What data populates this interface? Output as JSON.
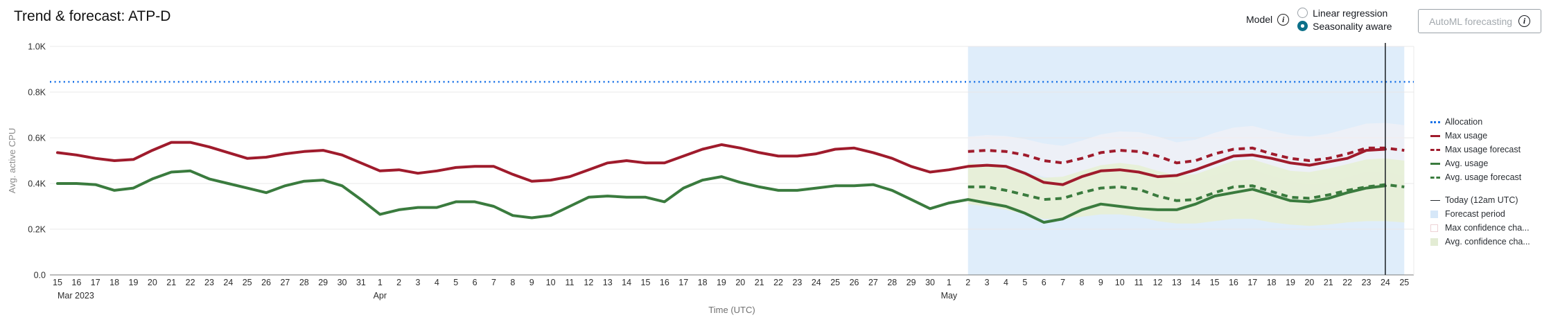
{
  "header": {
    "title": "Trend & forecast: ATP-D",
    "model_label": "Model",
    "model_info_icon": "i",
    "radios": [
      {
        "label": "Linear regression",
        "selected": false
      },
      {
        "label": "Seasonality aware",
        "selected": true
      }
    ],
    "automl_button_label": "AutoML forecasting",
    "automl_info_icon": "i"
  },
  "colors": {
    "accent_radio_selected": "#0c7089",
    "allocation_blue": "#1a73e8",
    "max_red": "#9f1b2c",
    "avg_green": "#3a7b3e",
    "today_line": "#24292e",
    "forecast_bg": "#dcebfa",
    "max_band": "rgba(255,243,243,0.45)",
    "avg_band": "rgba(231,239,215,0.95)",
    "grid": "#e8e8e8",
    "axis": "#7a7a7a"
  },
  "legend": {
    "items": [
      {
        "name": "legend-allocation",
        "label": "Allocation",
        "swatch": "dotted-line",
        "color": "#1a73e8",
        "group": 1
      },
      {
        "name": "legend-max-usage",
        "label": "Max usage",
        "swatch": "solid-line",
        "color": "#9f1b2c",
        "group": 1
      },
      {
        "name": "legend-max-usage-forecast",
        "label": "Max usage forecast",
        "swatch": "dashed-line",
        "color": "#9f1b2c",
        "group": 1
      },
      {
        "name": "legend-avg-usage",
        "label": "Avg. usage",
        "swatch": "solid-line",
        "color": "#3a7b3e",
        "group": 1
      },
      {
        "name": "legend-avg-usage-forecast",
        "label": "Avg. usage forecast",
        "swatch": "dashed-line",
        "color": "#3a7b3e",
        "group": 1
      },
      {
        "name": "legend-today",
        "label": "Today (12am UTC)",
        "swatch": "plain-line",
        "color": "#24292e",
        "group": 2
      },
      {
        "name": "legend-forecast-period",
        "label": "Forecast period",
        "swatch": "square",
        "color": "#d6e7f8",
        "group": 2
      },
      {
        "name": "legend-max-confidence",
        "label": "Max confidence cha...",
        "swatch": "square-outline",
        "color": "#eed3d6",
        "group": 2
      },
      {
        "name": "legend-avg-confidence",
        "label": "Avg. confidence cha...",
        "swatch": "square",
        "color": "#e3ecd4",
        "group": 2
      }
    ]
  },
  "chart_data": {
    "type": "line",
    "title": "Trend & forecast: ATP-D",
    "xlabel": "Time (UTC)",
    "ylabel": "Avg. active CPU",
    "ylim": [
      0,
      1000
    ],
    "y_ticks": [
      {
        "value": 0,
        "label": "0.0"
      },
      {
        "value": 200,
        "label": "0.2K"
      },
      {
        "value": 400,
        "label": "0.4K"
      },
      {
        "value": 600,
        "label": "0.6K"
      },
      {
        "value": 800,
        "label": "0.8K"
      },
      {
        "value": 1000,
        "label": "1.0K"
      }
    ],
    "x_axis": {
      "months": [
        {
          "label": "Mar 2023",
          "days": [
            15,
            16,
            17,
            18,
            19,
            20,
            21,
            22,
            23,
            24,
            25,
            26,
            27,
            28,
            29,
            30,
            31
          ]
        },
        {
          "label": "Apr",
          "days": [
            1,
            2,
            3,
            4,
            5,
            6,
            7,
            8,
            9,
            10,
            11,
            12,
            13,
            14,
            15,
            16,
            17,
            18,
            19,
            20,
            21,
            22,
            23,
            24,
            25,
            26,
            27,
            28,
            29,
            30
          ]
        },
        {
          "label": "May",
          "days": [
            1,
            2,
            3,
            4,
            5,
            6,
            7,
            8,
            9,
            10,
            11,
            12,
            13,
            14,
            15,
            16,
            17,
            18,
            19,
            20,
            21,
            22,
            23,
            24,
            25
          ]
        }
      ],
      "start_date": "2023-03-15",
      "end_date": "2023-05-25"
    },
    "allocation_value": 845,
    "forecast_start_index": 48,
    "forecast_start_date": "2023-05-02",
    "today_index": 70,
    "today_date": "2023-05-24",
    "legend_position": "right",
    "grid": "horizontal",
    "series": [
      {
        "name": "Max usage",
        "style": "solid",
        "color": "#9f1b2c",
        "start_index": 0,
        "values": [
          535,
          525,
          510,
          500,
          505,
          545,
          580,
          580,
          560,
          535,
          510,
          515,
          530,
          540,
          545,
          525,
          490,
          455,
          460,
          445,
          455,
          470,
          475,
          475,
          440,
          410,
          415,
          430,
          460,
          490,
          500,
          490,
          490,
          520,
          550,
          570,
          555,
          535,
          520,
          520,
          530,
          550,
          555,
          535,
          510,
          475,
          450,
          460,
          475,
          480,
          475,
          445,
          405,
          395,
          430,
          455,
          460,
          450,
          430,
          435,
          460,
          490,
          520,
          525,
          510,
          490,
          480,
          495,
          510,
          545,
          550
        ]
      },
      {
        "name": "Avg. usage",
        "style": "solid",
        "color": "#3a7b3e",
        "start_index": 0,
        "values": [
          400,
          400,
          395,
          370,
          380,
          420,
          450,
          455,
          420,
          400,
          380,
          360,
          390,
          410,
          415,
          390,
          330,
          265,
          285,
          295,
          295,
          320,
          320,
          300,
          260,
          250,
          260,
          300,
          340,
          345,
          340,
          340,
          320,
          380,
          415,
          430,
          405,
          385,
          370,
          370,
          380,
          390,
          390,
          395,
          370,
          330,
          290,
          315,
          330,
          315,
          300,
          270,
          230,
          245,
          285,
          310,
          300,
          290,
          285,
          285,
          310,
          345,
          360,
          375,
          350,
          325,
          320,
          335,
          360,
          380,
          390
        ]
      },
      {
        "name": "Max usage forecast",
        "style": "dashed",
        "color": "#9f1b2c",
        "start_index": 48,
        "values": [
          540,
          545,
          540,
          525,
          500,
          490,
          510,
          535,
          545,
          540,
          520,
          490,
          500,
          530,
          550,
          555,
          530,
          510,
          500,
          510,
          530,
          555,
          555,
          545
        ]
      },
      {
        "name": "Avg. usage forecast",
        "style": "dashed",
        "color": "#3a7b3e",
        "start_index": 48,
        "values": [
          385,
          385,
          370,
          350,
          330,
          335,
          360,
          380,
          385,
          375,
          345,
          325,
          330,
          360,
          385,
          390,
          365,
          340,
          335,
          350,
          370,
          385,
          395,
          385
        ]
      }
    ],
    "bands": [
      {
        "name": "Max confidence channel",
        "color": "rgba(255,243,243,0.45)",
        "start_index": 48,
        "upper": [
          605,
          612,
          608,
          595,
          575,
          565,
          588,
          615,
          628,
          625,
          605,
          580,
          592,
          622,
          645,
          652,
          630,
          612,
          605,
          618,
          640,
          662,
          665,
          655
        ],
        "lower": [
          475,
          478,
          472,
          455,
          430,
          418,
          435,
          458,
          465,
          458,
          435,
          402,
          410,
          440,
          458,
          460,
          435,
          410,
          398,
          405,
          428,
          452,
          450,
          438
        ]
      },
      {
        "name": "Avg. confidence channel",
        "color": "rgba(231,239,215,0.95)",
        "start_index": 48,
        "upper": [
          490,
          480,
          465,
          445,
          425,
          430,
          455,
          480,
          490,
          480,
          455,
          435,
          440,
          470,
          500,
          505,
          480,
          455,
          450,
          465,
          485,
          505,
          510,
          500
        ],
        "lower": [
          310,
          300,
          285,
          265,
          245,
          245,
          255,
          265,
          265,
          255,
          235,
          225,
          225,
          235,
          245,
          245,
          230,
          220,
          215,
          220,
          230,
          235,
          235,
          230
        ]
      }
    ]
  }
}
